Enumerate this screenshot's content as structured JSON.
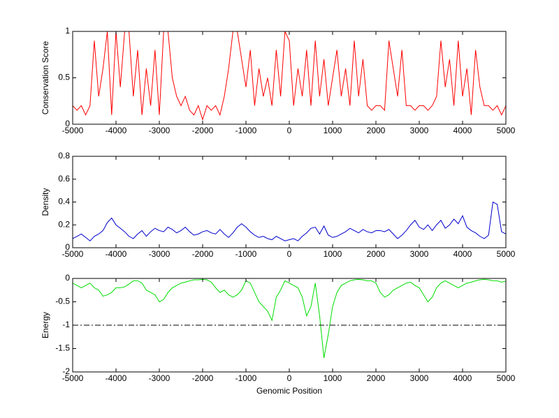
{
  "chart_data": [
    {
      "type": "line",
      "ylabel": "Conservation Score",
      "x": [
        -5000,
        -4900,
        -4800,
        -4700,
        -4600,
        -4500,
        -4400,
        -4300,
        -4200,
        -4100,
        -4000,
        -3900,
        -3800,
        -3700,
        -3600,
        -3500,
        -3400,
        -3300,
        -3200,
        -3100,
        -3000,
        -2900,
        -2800,
        -2700,
        -2600,
        -2500,
        -2400,
        -2300,
        -2200,
        -2100,
        -2000,
        -1900,
        -1800,
        -1700,
        -1600,
        -1500,
        -1400,
        -1300,
        -1200,
        -1100,
        -1000,
        -900,
        -800,
        -700,
        -600,
        -500,
        -400,
        -300,
        -200,
        -100,
        0,
        100,
        200,
        300,
        400,
        500,
        600,
        700,
        800,
        900,
        1000,
        1100,
        1200,
        1300,
        1400,
        1500,
        1600,
        1700,
        1800,
        1900,
        2000,
        2100,
        2200,
        2300,
        2400,
        2500,
        2600,
        2700,
        2800,
        2900,
        3000,
        3100,
        3200,
        3300,
        3400,
        3500,
        3600,
        3700,
        3800,
        3900,
        4000,
        4100,
        4200,
        4300,
        4400,
        4500,
        4600,
        4700,
        4800,
        4900,
        5000
      ],
      "series": [
        {
          "color": "#ff0000",
          "values": [
            0.2,
            0.15,
            0.2,
            0.1,
            0.2,
            0.9,
            0.3,
            0.6,
            1,
            0.1,
            1,
            0.4,
            1,
            1,
            0.3,
            0.8,
            0.1,
            0.6,
            0.2,
            0.8,
            0.1,
            1,
            1,
            0.5,
            0.3,
            0.2,
            0.3,
            0.15,
            0.1,
            0.2,
            0.05,
            0.2,
            0.15,
            0.2,
            0.1,
            0.3,
            0.6,
            1,
            1,
            0.7,
            0.4,
            0.8,
            0.2,
            0.6,
            0.3,
            0.5,
            0.2,
            0.8,
            0.3,
            1,
            0.9,
            0.2,
            0.6,
            0.3,
            0.8,
            0.2,
            0.9,
            0.3,
            0.7,
            0.2,
            0.5,
            0.8,
            0.3,
            0.6,
            0.2,
            0.9,
            0.3,
            0.7,
            0.2,
            0.15,
            0.2,
            0.2,
            0.15,
            0.9,
            0.6,
            0.3,
            0.8,
            0.2,
            0.2,
            0.15,
            0.2,
            0.2,
            0.15,
            0.2,
            0.3,
            0.9,
            0.4,
            0.7,
            0.2,
            0.9,
            0.3,
            0.6,
            0.1,
            0.8,
            0.4,
            0.2,
            0.2,
            0.15,
            0.2,
            0.1,
            0.2
          ]
        }
      ],
      "xlim": [
        -5000,
        5000
      ],
      "xticks": [
        -5000,
        -4000,
        -3000,
        -2000,
        -1000,
        0,
        1000,
        2000,
        3000,
        4000,
        5000
      ],
      "ylim": [
        0,
        1
      ],
      "yticks": [
        0,
        0.5,
        1
      ]
    },
    {
      "type": "line",
      "ylabel": "Density",
      "x": [
        -5000,
        -4900,
        -4800,
        -4700,
        -4600,
        -4500,
        -4400,
        -4300,
        -4200,
        -4100,
        -4000,
        -3900,
        -3800,
        -3700,
        -3600,
        -3500,
        -3400,
        -3300,
        -3200,
        -3100,
        -3000,
        -2900,
        -2800,
        -2700,
        -2600,
        -2500,
        -2400,
        -2300,
        -2200,
        -2100,
        -2000,
        -1900,
        -1800,
        -1700,
        -1600,
        -1500,
        -1400,
        -1300,
        -1200,
        -1100,
        -1000,
        -900,
        -800,
        -700,
        -600,
        -500,
        -400,
        -300,
        -200,
        -100,
        0,
        100,
        200,
        300,
        400,
        500,
        600,
        700,
        800,
        900,
        1000,
        1100,
        1200,
        1300,
        1400,
        1500,
        1600,
        1700,
        1800,
        1900,
        2000,
        2100,
        2200,
        2300,
        2400,
        2500,
        2600,
        2700,
        2800,
        2900,
        3000,
        3100,
        3200,
        3300,
        3400,
        3500,
        3600,
        3700,
        3800,
        3900,
        4000,
        4100,
        4200,
        4300,
        4400,
        4500,
        4600,
        4700,
        4800,
        4900,
        5000
      ],
      "series": [
        {
          "color": "#0000cc",
          "values": [
            0.08,
            0.1,
            0.12,
            0.09,
            0.06,
            0.1,
            0.12,
            0.15,
            0.22,
            0.26,
            0.2,
            0.17,
            0.14,
            0.1,
            0.08,
            0.12,
            0.15,
            0.1,
            0.14,
            0.17,
            0.15,
            0.14,
            0.18,
            0.16,
            0.13,
            0.15,
            0.18,
            0.14,
            0.11,
            0.12,
            0.14,
            0.15,
            0.13,
            0.12,
            0.16,
            0.12,
            0.09,
            0.13,
            0.18,
            0.21,
            0.18,
            0.14,
            0.11,
            0.09,
            0.1,
            0.08,
            0.07,
            0.1,
            0.08,
            0.06,
            0.07,
            0.08,
            0.06,
            0.1,
            0.13,
            0.17,
            0.18,
            0.12,
            0.19,
            0.11,
            0.09,
            0.1,
            0.12,
            0.14,
            0.17,
            0.15,
            0.13,
            0.16,
            0.14,
            0.13,
            0.15,
            0.15,
            0.14,
            0.16,
            0.12,
            0.08,
            0.11,
            0.15,
            0.2,
            0.24,
            0.18,
            0.16,
            0.2,
            0.15,
            0.2,
            0.24,
            0.17,
            0.2,
            0.25,
            0.21,
            0.28,
            0.18,
            0.15,
            0.13,
            0.1,
            0.08,
            0.11,
            0.4,
            0.38,
            0.14,
            0.12
          ]
        }
      ],
      "xlim": [
        -5000,
        5000
      ],
      "xticks": [
        -5000,
        -4000,
        -3000,
        -2000,
        -1000,
        0,
        1000,
        2000,
        3000,
        4000,
        5000
      ],
      "ylim": [
        0,
        0.8
      ],
      "yticks": [
        0,
        0.2,
        0.4,
        0.6,
        0.8
      ]
    },
    {
      "type": "line",
      "ylabel": "Energy",
      "xlabel": "Genomic Position",
      "x": [
        -5000,
        -4900,
        -4800,
        -4700,
        -4600,
        -4500,
        -4400,
        -4300,
        -4200,
        -4100,
        -4000,
        -3900,
        -3800,
        -3700,
        -3600,
        -3500,
        -3400,
        -3300,
        -3200,
        -3100,
        -3000,
        -2900,
        -2800,
        -2700,
        -2600,
        -2500,
        -2400,
        -2300,
        -2200,
        -2100,
        -2000,
        -1900,
        -1800,
        -1700,
        -1600,
        -1500,
        -1400,
        -1300,
        -1200,
        -1100,
        -1000,
        -900,
        -800,
        -700,
        -600,
        -500,
        -400,
        -300,
        -200,
        -100,
        0,
        100,
        200,
        300,
        400,
        500,
        600,
        700,
        800,
        900,
        1000,
        1100,
        1200,
        1300,
        1400,
        1500,
        1600,
        1700,
        1800,
        1900,
        2000,
        2100,
        2200,
        2300,
        2400,
        2500,
        2600,
        2700,
        2800,
        2900,
        3000,
        3100,
        3200,
        3300,
        3400,
        3500,
        3600,
        3700,
        3800,
        3900,
        4000,
        4100,
        4200,
        4300,
        4400,
        4500,
        4600,
        4700,
        4800,
        4900,
        5000
      ],
      "series": [
        {
          "color": "#00dd00",
          "values": [
            -0.1,
            -0.15,
            -0.2,
            -0.15,
            -0.1,
            -0.2,
            -0.25,
            -0.38,
            -0.35,
            -0.3,
            -0.2,
            -0.2,
            -0.18,
            -0.12,
            -0.05,
            -0.05,
            -0.1,
            -0.25,
            -0.3,
            -0.35,
            -0.5,
            -0.45,
            -0.3,
            -0.2,
            -0.15,
            -0.1,
            -0.08,
            -0.05,
            -0.03,
            -0.03,
            -0.02,
            -0.03,
            -0.08,
            -0.2,
            -0.3,
            -0.25,
            -0.35,
            -0.4,
            -0.35,
            -0.25,
            -0.05,
            -0.1,
            -0.3,
            -0.5,
            -0.6,
            -0.7,
            -0.9,
            -0.4,
            -0.25,
            -0.05,
            -0.1,
            -0.15,
            -0.2,
            -0.4,
            -0.8,
            -0.6,
            -0.1,
            -0.8,
            -1.7,
            -1.2,
            -0.6,
            -0.3,
            -0.15,
            -0.1,
            -0.05,
            -0.03,
            -0.02,
            -0.03,
            -0.05,
            -0.05,
            -0.1,
            -0.3,
            -0.4,
            -0.35,
            -0.25,
            -0.2,
            -0.15,
            -0.1,
            -0.08,
            -0.15,
            -0.2,
            -0.35,
            -0.5,
            -0.4,
            -0.2,
            -0.1,
            -0.05,
            -0.1,
            -0.15,
            -0.2,
            -0.15,
            -0.1,
            -0.08,
            -0.05,
            -0.03,
            -0.02,
            -0.03,
            -0.05,
            -0.05,
            -0.08,
            -0.06
          ]
        }
      ],
      "hline": -1,
      "hline_style": "dashdot",
      "xlim": [
        -5000,
        5000
      ],
      "xticks": [
        -5000,
        -4000,
        -3000,
        -2000,
        -1000,
        0,
        1000,
        2000,
        3000,
        4000,
        5000
      ],
      "ylim": [
        -2,
        0
      ],
      "yticks": [
        -2,
        -1.5,
        -1,
        -0.5,
        0
      ]
    }
  ]
}
